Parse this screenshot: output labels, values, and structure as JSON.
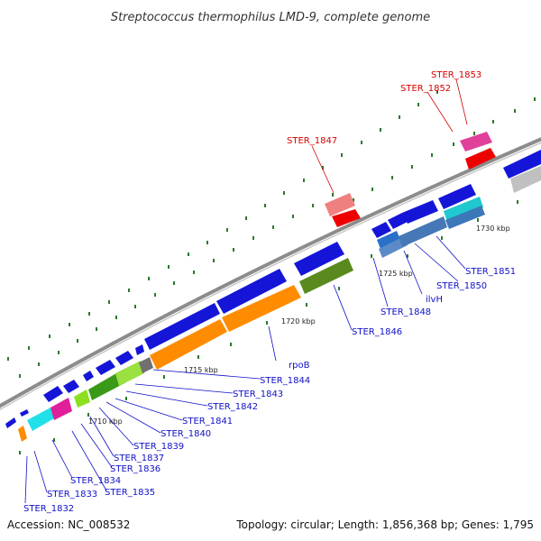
{
  "title": "Streptococcus thermophilus LMD-9, complete genome",
  "footer": {
    "accession": "Accession: NC_008532",
    "topology": "Topology: circular; Length: 1,856,368 bp; Genes: 1,795"
  },
  "colors": {
    "backbone": "#8c8c8c",
    "label_blue": "#1010c8",
    "label_red": "#d40000",
    "tick": "#2b7a2b"
  },
  "kbp_marks": [
    "1710 kbp",
    "1715 kbp",
    "1720 kbp",
    "1725 kbp",
    "1730 kbp"
  ],
  "gene_labels": [
    {
      "text": "STER_1832",
      "color": "blue"
    },
    {
      "text": "STER_1833",
      "color": "blue"
    },
    {
      "text": "STER_1834",
      "color": "blue"
    },
    {
      "text": "STER_1835",
      "color": "blue"
    },
    {
      "text": "STER_1836",
      "color": "blue"
    },
    {
      "text": "STER_1837",
      "color": "blue"
    },
    {
      "text": "STER_1839",
      "color": "blue"
    },
    {
      "text": "STER_1840",
      "color": "blue"
    },
    {
      "text": "STER_1841",
      "color": "blue"
    },
    {
      "text": "STER_1842",
      "color": "blue"
    },
    {
      "text": "STER_1843",
      "color": "blue"
    },
    {
      "text": "STER_1844",
      "color": "blue"
    },
    {
      "text": "rpoB",
      "color": "blue"
    },
    {
      "text": "STER_1846",
      "color": "blue"
    },
    {
      "text": "STER_1847",
      "color": "red"
    },
    {
      "text": "STER_1848",
      "color": "blue"
    },
    {
      "text": "ilvH",
      "color": "blue"
    },
    {
      "text": "STER_1850",
      "color": "blue"
    },
    {
      "text": "STER_1851",
      "color": "blue"
    },
    {
      "text": "STER_1852",
      "color": "red"
    },
    {
      "text": "STER_1853",
      "color": "red"
    }
  ]
}
